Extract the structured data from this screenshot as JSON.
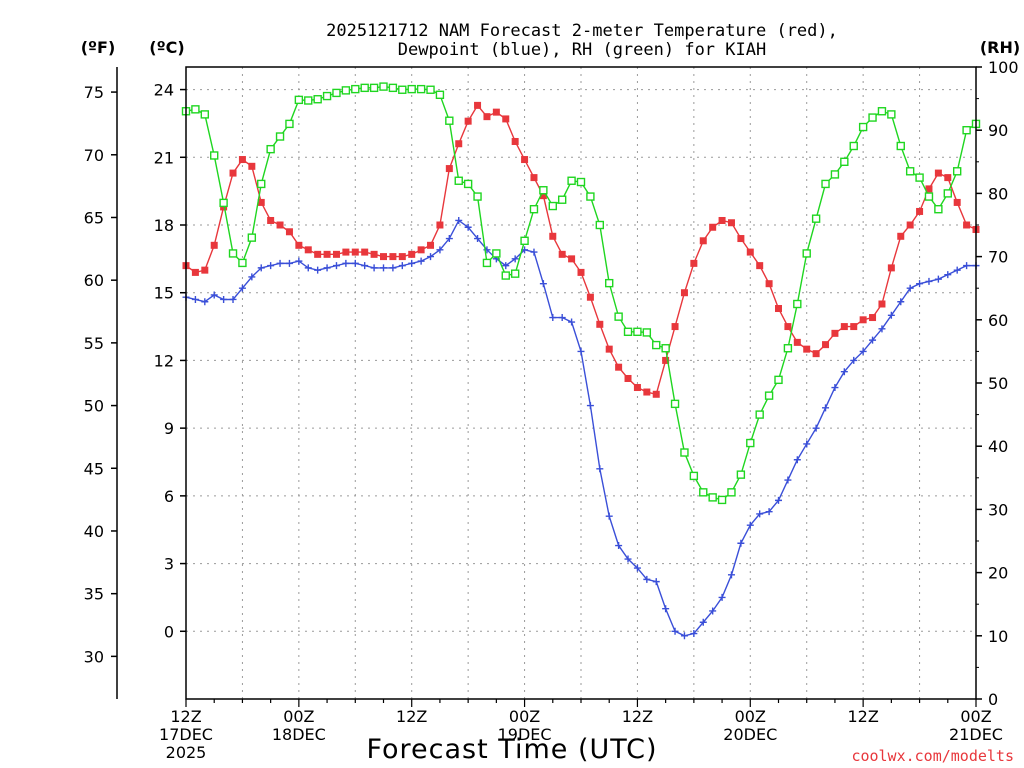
{
  "chart_data": {
    "type": "line",
    "title_lines": [
      "2025121712 NAM Forecast 2-meter Temperature (red),",
      "Dewpoint (blue), RH (green) for KIAH"
    ],
    "units": {
      "fahrenheit": "(ºF)",
      "celsius": "(ºC)",
      "rh": "(RH)"
    },
    "xlabel": "Forecast Time (UTC)",
    "credit": "coolwx.com/modelts",
    "x_range_hours": [
      0,
      84
    ],
    "celsius_axis": {
      "ylim": [
        -3,
        25
      ],
      "ticks": [
        "24",
        "21",
        "18",
        "15",
        "12",
        "9",
        "6",
        "3",
        "0"
      ],
      "tick_values": [
        24,
        21,
        18,
        15,
        12,
        9,
        6,
        3,
        0
      ]
    },
    "fahrenheit_axis": {
      "ticks": [
        "75",
        "70",
        "65",
        "60",
        "55",
        "50",
        "45",
        "40",
        "35",
        "30"
      ],
      "tick_values": [
        75,
        70,
        65,
        60,
        55,
        50,
        45,
        40,
        35,
        30
      ]
    },
    "rh_axis": {
      "ylim": [
        0,
        100
      ],
      "ticks": [
        "100",
        "90",
        "80",
        "70",
        "60",
        "50",
        "40",
        "30",
        "20",
        "10",
        "0"
      ],
      "tick_values": [
        100,
        90,
        80,
        70,
        60,
        50,
        40,
        30,
        20,
        10,
        0
      ]
    },
    "x_ticks": [
      {
        "hour": 0,
        "lines": [
          "12Z",
          "17DEC",
          "2025"
        ]
      },
      {
        "hour": 12,
        "lines": [
          "00Z",
          "18DEC"
        ]
      },
      {
        "hour": 24,
        "lines": [
          "12Z"
        ]
      },
      {
        "hour": 36,
        "lines": [
          "00Z",
          "19DEC"
        ]
      },
      {
        "hour": 48,
        "lines": [
          "12Z"
        ]
      },
      {
        "hour": 60,
        "lines": [
          "00Z",
          "20DEC"
        ]
      },
      {
        "hour": 72,
        "lines": [
          "12Z"
        ]
      },
      {
        "hour": 84,
        "lines": [
          "00Z",
          "21DEC"
        ]
      }
    ],
    "series": [
      {
        "name": "2-meter Temperature",
        "unit": "C",
        "axis": "celsius",
        "color": "#e8373c",
        "marker": "filled-square",
        "values": [
          16.2,
          15.9,
          16.0,
          17.1,
          18.8,
          20.3,
          20.9,
          20.6,
          19.0,
          18.2,
          18.0,
          17.7,
          17.1,
          16.9,
          16.7,
          16.7,
          16.7,
          16.8,
          16.8,
          16.8,
          16.7,
          16.6,
          16.6,
          16.6,
          16.7,
          16.9,
          17.1,
          18.0,
          20.5,
          21.6,
          22.6,
          23.3,
          22.8,
          23.0,
          22.7,
          21.7,
          20.9,
          20.1,
          19.3,
          17.5,
          16.7,
          16.5,
          15.9,
          14.8,
          13.6,
          12.5,
          11.7,
          11.2,
          10.8,
          10.6,
          10.5,
          12.0,
          13.5,
          15.0,
          16.3,
          17.3,
          17.9,
          18.2,
          18.1,
          17.4,
          16.8,
          16.2,
          15.4,
          14.3,
          13.5,
          12.8,
          12.5,
          12.3,
          12.7,
          13.2,
          13.5,
          13.5,
          13.8,
          13.9,
          14.5,
          16.1,
          17.5,
          18.0,
          18.6,
          19.6,
          20.3,
          20.1,
          19.0,
          18.0,
          17.8
        ]
      },
      {
        "name": "Dewpoint",
        "unit": "C",
        "axis": "celsius",
        "color": "#3a4fd8",
        "marker": "plus",
        "values": [
          14.8,
          14.7,
          14.6,
          14.9,
          14.7,
          14.7,
          15.2,
          15.7,
          16.1,
          16.2,
          16.3,
          16.3,
          16.4,
          16.1,
          16.0,
          16.1,
          16.2,
          16.3,
          16.3,
          16.2,
          16.1,
          16.1,
          16.1,
          16.2,
          16.3,
          16.4,
          16.6,
          16.9,
          17.4,
          18.2,
          17.9,
          17.4,
          16.9,
          16.5,
          16.2,
          16.5,
          16.9,
          16.8,
          15.4,
          13.9,
          13.9,
          13.7,
          12.4,
          10.0,
          7.2,
          5.1,
          3.8,
          3.2,
          2.8,
          2.3,
          2.2,
          1.0,
          0.0,
          -0.2,
          -0.1,
          0.4,
          0.9,
          1.5,
          2.5,
          3.9,
          4.7,
          5.2,
          5.3,
          5.8,
          6.7,
          7.6,
          8.3,
          9.0,
          9.9,
          10.8,
          11.5,
          12.0,
          12.4,
          12.9,
          13.4,
          14.0,
          14.6,
          15.2,
          15.4,
          15.5,
          15.6,
          15.8,
          16.0,
          16.2,
          16.2
        ]
      },
      {
        "name": "RH",
        "unit": "%",
        "axis": "rh",
        "color": "#1fd620",
        "marker": "open-square",
        "values": [
          93.0,
          93.3,
          92.5,
          86.0,
          78.5,
          70.5,
          69.0,
          73.0,
          81.5,
          87.0,
          89.0,
          91.0,
          94.8,
          94.7,
          94.9,
          95.4,
          95.9,
          96.3,
          96.5,
          96.7,
          96.7,
          96.9,
          96.7,
          96.4,
          96.5,
          96.5,
          96.4,
          95.6,
          91.5,
          82.0,
          81.5,
          79.5,
          69.0,
          70.5,
          67.0,
          67.3,
          72.5,
          77.5,
          80.5,
          78.0,
          79.0,
          82.0,
          81.8,
          79.5,
          75.0,
          65.8,
          60.5,
          58.1,
          58.1,
          58.0,
          56.0,
          55.5,
          46.7,
          39.0,
          35.3,
          32.7,
          31.9,
          31.5,
          32.7,
          35.5,
          40.5,
          45.0,
          48.0,
          50.5,
          55.5,
          62.5,
          70.5,
          76.0,
          81.5,
          83.0,
          85.0,
          87.5,
          90.5,
          92.0,
          93.0,
          92.5,
          87.5,
          83.5,
          82.5,
          79.5,
          77.5,
          80.0,
          83.5,
          90.0,
          91.0
        ]
      }
    ]
  }
}
